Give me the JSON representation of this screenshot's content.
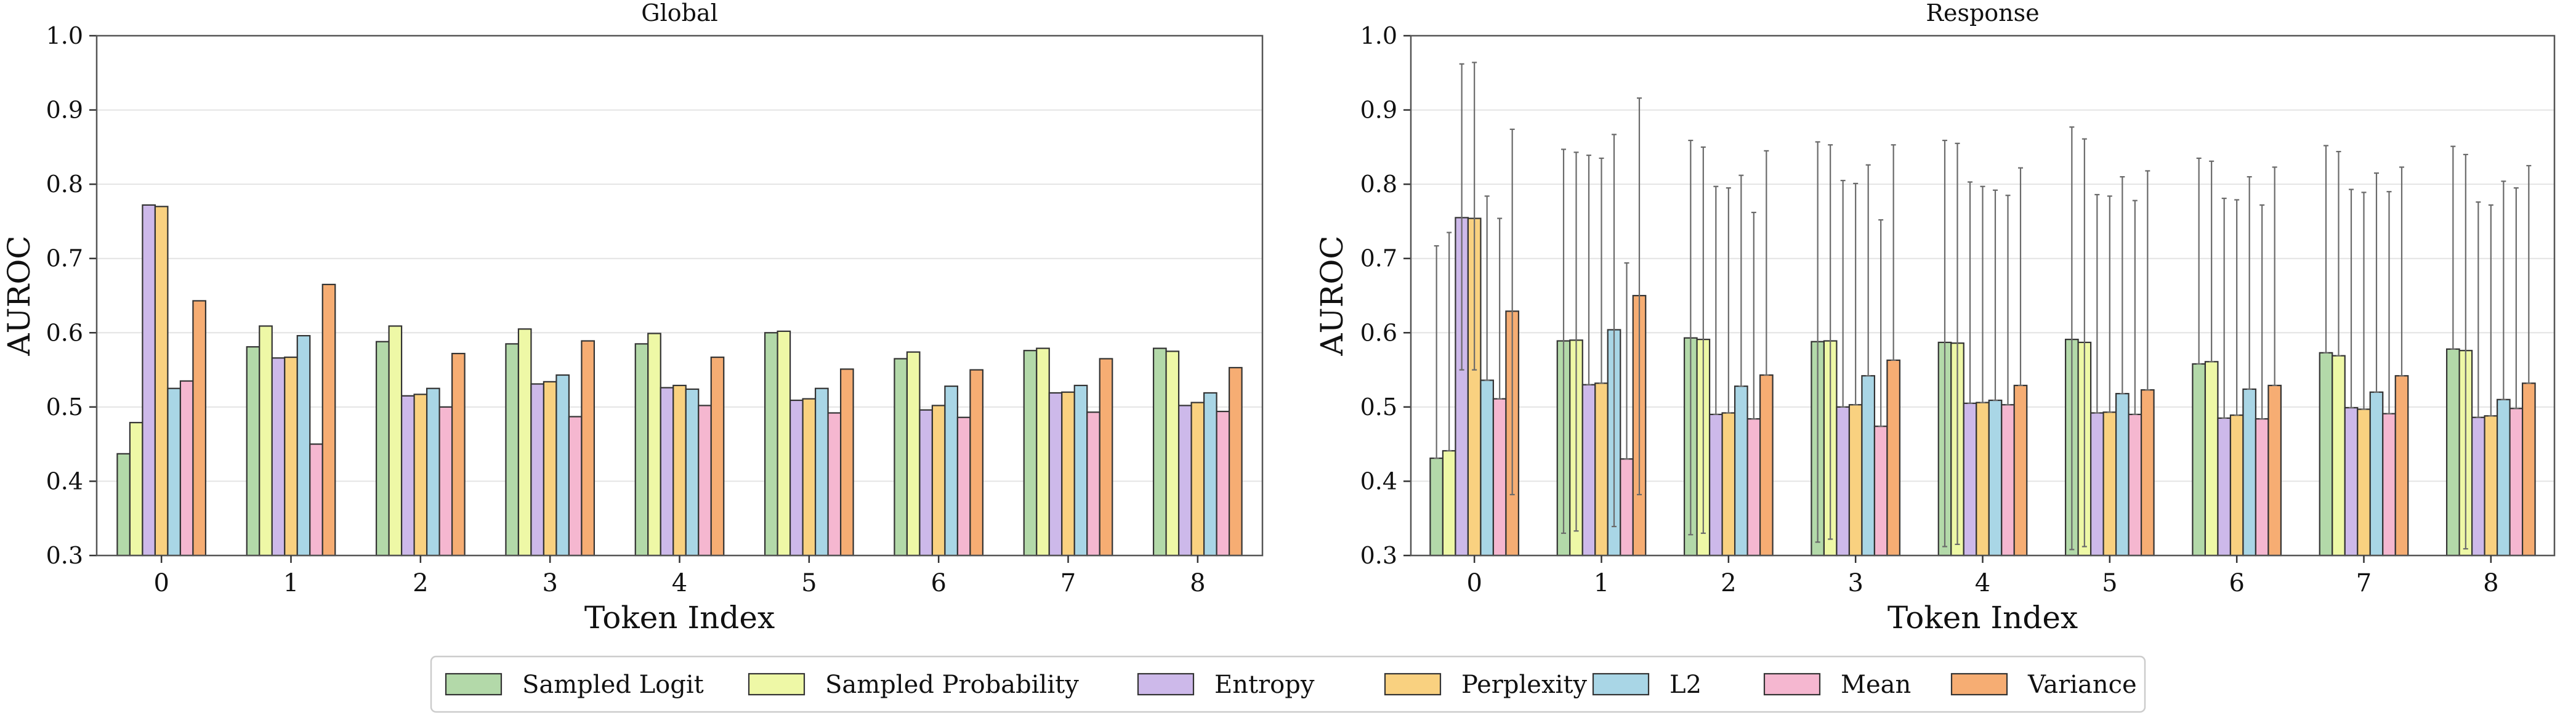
{
  "chart_data": [
    {
      "type": "bar",
      "title": "Global",
      "xlabel": "Token Index",
      "ylabel": "AUROC",
      "ylim": [
        0.3,
        1.0
      ],
      "yticks": [
        "0.3",
        "0.4",
        "0.5",
        "0.6",
        "0.7",
        "0.8",
        "0.9",
        "1.0"
      ],
      "categories": [
        "0",
        "1",
        "2",
        "3",
        "4",
        "5",
        "6",
        "7",
        "8"
      ],
      "grid": true,
      "series": [
        {
          "name": "Sampled Logit",
          "values": [
            0.437,
            0.581,
            0.588,
            0.585,
            0.585,
            0.6,
            0.565,
            0.576,
            0.579
          ]
        },
        {
          "name": "Sampled Probability",
          "values": [
            0.479,
            0.609,
            0.609,
            0.605,
            0.599,
            0.602,
            0.574,
            0.579,
            0.575
          ]
        },
        {
          "name": "Entropy",
          "values": [
            0.772,
            0.566,
            0.515,
            0.531,
            0.526,
            0.509,
            0.496,
            0.519,
            0.502
          ]
        },
        {
          "name": "Perplexity",
          "values": [
            0.77,
            0.567,
            0.517,
            0.534,
            0.529,
            0.511,
            0.502,
            0.52,
            0.506
          ]
        },
        {
          "name": "L2",
          "values": [
            0.525,
            0.596,
            0.525,
            0.543,
            0.524,
            0.525,
            0.528,
            0.529,
            0.519
          ]
        },
        {
          "name": "Mean",
          "values": [
            0.535,
            0.45,
            0.5,
            0.487,
            0.502,
            0.492,
            0.486,
            0.493,
            0.494
          ]
        },
        {
          "name": "Variance",
          "values": [
            0.643,
            0.665,
            0.572,
            0.589,
            0.567,
            0.551,
            0.55,
            0.565,
            0.553
          ]
        }
      ]
    },
    {
      "type": "bar",
      "title": "Response",
      "xlabel": "Token Index",
      "ylabel": "AUROC",
      "ylim": [
        0.3,
        1.0
      ],
      "yticks": [
        "0.3",
        "0.4",
        "0.5",
        "0.6",
        "0.7",
        "0.8",
        "0.9",
        "1.0"
      ],
      "categories": [
        "0",
        "1",
        "2",
        "3",
        "4",
        "5",
        "6",
        "7",
        "8"
      ],
      "grid": true,
      "error_bars": true,
      "series": [
        {
          "name": "Sampled Logit",
          "values": [
            0.431,
            0.589,
            0.593,
            0.588,
            0.587,
            0.591,
            0.558,
            0.573,
            0.578
          ],
          "err_low": [
            0.431,
            0.33,
            0.328,
            0.318,
            0.312,
            0.308,
            0.558,
            0.573,
            0.578
          ],
          "err_high": [
            0.717,
            0.847,
            0.859,
            0.857,
            0.859,
            0.877,
            0.835,
            0.852,
            0.851
          ]
        },
        {
          "name": "Sampled Probability",
          "values": [
            0.441,
            0.59,
            0.591,
            0.589,
            0.586,
            0.587,
            0.561,
            0.569,
            0.576
          ],
          "err_low": [
            0.441,
            0.333,
            0.33,
            0.322,
            0.315,
            0.312,
            0.561,
            0.569,
            0.309
          ],
          "err_high": [
            0.735,
            0.843,
            0.85,
            0.853,
            0.855,
            0.861,
            0.831,
            0.844,
            0.84
          ]
        },
        {
          "name": "Entropy",
          "values": [
            0.755,
            0.53,
            0.49,
            0.5,
            0.505,
            0.492,
            0.485,
            0.499,
            0.486
          ],
          "err_low": [
            0.55,
            0.53,
            0.49,
            0.5,
            0.505,
            0.492,
            0.485,
            0.499,
            0.486
          ],
          "err_high": [
            0.962,
            0.839,
            0.797,
            0.805,
            0.803,
            0.786,
            0.781,
            0.793,
            0.776
          ]
        },
        {
          "name": "Perplexity",
          "values": [
            0.754,
            0.532,
            0.492,
            0.503,
            0.506,
            0.493,
            0.489,
            0.497,
            0.488
          ],
          "err_low": [
            0.55,
            0.532,
            0.492,
            0.503,
            0.506,
            0.493,
            0.489,
            0.497,
            0.488
          ],
          "err_high": [
            0.964,
            0.835,
            0.795,
            0.801,
            0.797,
            0.784,
            0.779,
            0.789,
            0.772
          ]
        },
        {
          "name": "L2",
          "values": [
            0.536,
            0.604,
            0.528,
            0.542,
            0.509,
            0.518,
            0.524,
            0.52,
            0.51
          ],
          "err_low": [
            0.536,
            0.339,
            0.528,
            0.542,
            0.509,
            0.518,
            0.524,
            0.52,
            0.51
          ],
          "err_high": [
            0.784,
            0.867,
            0.812,
            0.826,
            0.792,
            0.81,
            0.81,
            0.815,
            0.804
          ]
        },
        {
          "name": "Mean",
          "values": [
            0.511,
            0.43,
            0.484,
            0.474,
            0.503,
            0.49,
            0.484,
            0.491,
            0.498
          ],
          "err_low": [
            0.511,
            0.43,
            0.484,
            0.474,
            0.503,
            0.49,
            0.484,
            0.491,
            0.498
          ],
          "err_high": [
            0.754,
            0.694,
            0.762,
            0.752,
            0.785,
            0.778,
            0.772,
            0.79,
            0.795
          ]
        },
        {
          "name": "Variance",
          "values": [
            0.629,
            0.65,
            0.543,
            0.563,
            0.529,
            0.523,
            0.529,
            0.542,
            0.532
          ],
          "err_low": [
            0.382,
            0.382,
            0.543,
            0.563,
            0.529,
            0.523,
            0.529,
            0.542,
            0.532
          ],
          "err_high": [
            0.874,
            0.916,
            0.845,
            0.853,
            0.822,
            0.818,
            0.823,
            0.823,
            0.825
          ]
        }
      ]
    }
  ],
  "legend": {
    "position": "bottom-center",
    "entries": [
      "Sampled Logit",
      "Sampled Probability",
      "Entropy",
      "Perplexity",
      "L2",
      "Mean",
      "Variance"
    ]
  },
  "colors": {
    "Sampled Logit": "#b3d9a9",
    "Sampled Probability": "#eef8a6",
    "Entropy": "#cdb9ea",
    "Perplexity": "#f9d180",
    "L2": "#a9d6e6",
    "Mean": "#f5b7d0",
    "Variance": "#f6ad73"
  }
}
